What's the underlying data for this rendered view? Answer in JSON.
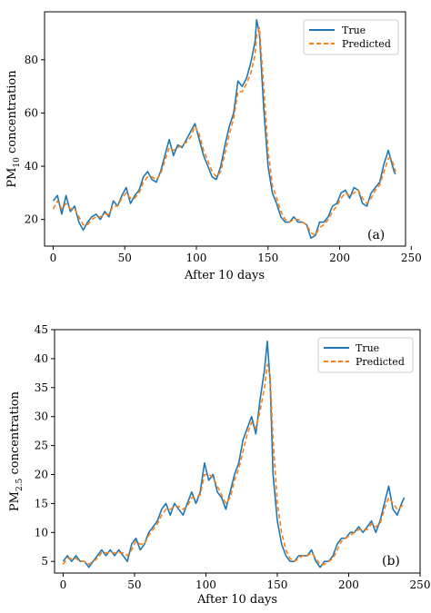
{
  "chart_data": [
    {
      "type": "line",
      "panel_label": "(a)",
      "xlabel": "After 10 days",
      "ylabel_main": "PM",
      "ylabel_sub": "10",
      "ylabel_rest": " concentration",
      "xlim": [
        -6,
        246
      ],
      "ylim": [
        10,
        98
      ],
      "xticks": [
        0,
        50,
        100,
        150,
        200,
        250
      ],
      "yticks": [
        20,
        40,
        60,
        80
      ],
      "legend": {
        "position": "top-right"
      },
      "series": [
        {
          "name": "True",
          "color": "#1f77b4",
          "style": "solid",
          "x": [
            0,
            3,
            6,
            9,
            12,
            15,
            18,
            21,
            24,
            27,
            30,
            33,
            36,
            39,
            42,
            45,
            48,
            51,
            54,
            57,
            60,
            63,
            66,
            69,
            72,
            75,
            78,
            81,
            84,
            87,
            90,
            93,
            96,
            99,
            102,
            105,
            108,
            111,
            114,
            117,
            120,
            123,
            126,
            129,
            132,
            135,
            138,
            141,
            142,
            144,
            147,
            150,
            153,
            156,
            159,
            162,
            165,
            168,
            171,
            174,
            177,
            180,
            183,
            186,
            189,
            192,
            195,
            198,
            201,
            204,
            207,
            210,
            213,
            216,
            219,
            222,
            225,
            228,
            231,
            234,
            236,
            238,
            239
          ],
          "y": [
            27,
            29,
            22,
            29,
            23,
            25,
            19,
            16,
            19,
            21,
            22,
            20,
            23,
            21,
            27,
            25,
            29,
            32,
            26,
            29,
            31,
            36,
            38,
            35,
            34,
            38,
            44,
            50,
            44,
            48,
            47,
            50,
            53,
            56,
            50,
            44,
            40,
            36,
            35,
            40,
            48,
            55,
            60,
            72,
            70,
            73,
            79,
            87,
            95,
            90,
            62,
            40,
            30,
            26,
            21,
            19,
            19,
            21,
            19,
            19,
            18,
            13,
            14,
            19,
            19,
            21,
            25,
            26,
            30,
            31,
            28,
            32,
            31,
            26,
            25,
            30,
            32,
            34,
            41,
            46,
            42,
            38,
            37
          ]
        },
        {
          "name": "Predicted",
          "color": "#ff7f0e",
          "style": "dashed",
          "x": [
            0,
            3,
            6,
            9,
            12,
            15,
            18,
            21,
            24,
            27,
            30,
            33,
            36,
            39,
            42,
            45,
            48,
            51,
            54,
            57,
            60,
            63,
            66,
            69,
            72,
            75,
            78,
            81,
            84,
            87,
            90,
            93,
            96,
            99,
            102,
            105,
            108,
            111,
            114,
            117,
            120,
            123,
            126,
            129,
            132,
            135,
            138,
            141,
            142,
            144,
            147,
            150,
            153,
            156,
            159,
            162,
            165,
            168,
            171,
            174,
            177,
            180,
            183,
            186,
            189,
            192,
            195,
            198,
            201,
            204,
            207,
            210,
            213,
            216,
            219,
            222,
            225,
            228,
            231,
            234,
            236,
            238,
            239
          ],
          "y": [
            24,
            27,
            24,
            26,
            24,
            24,
            21,
            18,
            18,
            20,
            21,
            21,
            22,
            22,
            25,
            25,
            28,
            30,
            28,
            28,
            30,
            34,
            36,
            36,
            35,
            37,
            42,
            47,
            46,
            47,
            48,
            49,
            51,
            55,
            52,
            46,
            42,
            38,
            36,
            38,
            45,
            52,
            58,
            68,
            68,
            71,
            75,
            82,
            89,
            92,
            70,
            46,
            33,
            28,
            23,
            20,
            19,
            20,
            20,
            19,
            18,
            15,
            14,
            17,
            18,
            20,
            23,
            25,
            28,
            30,
            29,
            30,
            31,
            28,
            26,
            28,
            31,
            33,
            38,
            43,
            43,
            40,
            38
          ]
        }
      ]
    },
    {
      "type": "line",
      "panel_label": "(b)",
      "xlabel": "After 10 days",
      "ylabel_main": "PM",
      "ylabel_sub": "2.5",
      "ylabel_rest": " concentration",
      "xlim": [
        -6,
        250
      ],
      "ylim": [
        3,
        45
      ],
      "xticks": [
        0,
        50,
        100,
        150,
        200,
        250
      ],
      "yticks": [
        5,
        10,
        15,
        20,
        25,
        30,
        35,
        40,
        45
      ],
      "legend": {
        "position": "top-right"
      },
      "series": [
        {
          "name": "True",
          "color": "#1f77b4",
          "style": "solid",
          "x": [
            0,
            3,
            6,
            9,
            12,
            15,
            18,
            21,
            24,
            27,
            30,
            33,
            36,
            39,
            42,
            45,
            48,
            51,
            54,
            57,
            60,
            63,
            66,
            69,
            72,
            75,
            78,
            81,
            84,
            87,
            90,
            93,
            96,
            99,
            102,
            105,
            108,
            111,
            114,
            117,
            120,
            123,
            126,
            129,
            132,
            135,
            138,
            141,
            143,
            145,
            147,
            150,
            153,
            156,
            159,
            162,
            165,
            168,
            171,
            174,
            177,
            180,
            183,
            186,
            189,
            192,
            195,
            198,
            201,
            204,
            207,
            210,
            213,
            216,
            219,
            222,
            225,
            228,
            231,
            234,
            237,
            239
          ],
          "y": [
            5,
            6,
            5,
            6,
            5,
            5,
            4,
            5,
            6,
            7,
            6,
            7,
            6,
            7,
            6,
            5,
            8,
            9,
            7,
            8,
            10,
            11,
            12,
            14,
            15,
            13,
            15,
            14,
            13,
            15,
            17,
            15,
            17,
            22,
            19,
            20,
            17,
            16,
            14,
            17,
            20,
            22,
            26,
            28,
            30,
            27,
            33,
            38,
            43,
            36,
            20,
            12,
            8,
            6,
            5,
            5,
            6,
            6,
            6,
            7,
            5,
            4,
            5,
            5,
            6,
            8,
            9,
            9,
            10,
            10,
            11,
            10,
            11,
            12,
            10,
            12,
            15,
            18,
            14,
            13,
            15,
            16
          ]
        },
        {
          "name": "Predicted",
          "color": "#ff7f0e",
          "style": "dashed",
          "x": [
            0,
            3,
            6,
            9,
            12,
            15,
            18,
            21,
            24,
            27,
            30,
            33,
            36,
            39,
            42,
            45,
            48,
            51,
            54,
            57,
            60,
            63,
            66,
            69,
            72,
            75,
            78,
            81,
            84,
            87,
            90,
            93,
            96,
            99,
            102,
            105,
            108,
            111,
            114,
            117,
            120,
            123,
            126,
            129,
            132,
            135,
            138,
            141,
            143,
            145,
            147,
            150,
            153,
            156,
            159,
            162,
            165,
            168,
            171,
            174,
            177,
            180,
            183,
            186,
            189,
            192,
            195,
            198,
            201,
            204,
            207,
            210,
            213,
            216,
            219,
            222,
            225,
            228,
            231,
            234,
            237,
            239
          ],
          "y": [
            4.5,
            5.5,
            5.5,
            5.5,
            5,
            5,
            4.5,
            5,
            5.5,
            6.5,
            6.5,
            6.5,
            6.5,
            6.5,
            6.5,
            6,
            7,
            8.5,
            8,
            8,
            9.5,
            10.5,
            11.5,
            13,
            14,
            14,
            14.5,
            14.5,
            14,
            14.5,
            16,
            16,
            16.5,
            20,
            20,
            19.5,
            18,
            16.5,
            15,
            16,
            19,
            21,
            24,
            27,
            29,
            28,
            31,
            35,
            39,
            37,
            26,
            15,
            10,
            7,
            5.5,
            5,
            5.5,
            6,
            6,
            6.5,
            5.5,
            4.5,
            4.5,
            5,
            5.5,
            7,
            8.5,
            9,
            9.5,
            10,
            10.5,
            10.5,
            10.5,
            11.5,
            11,
            11.5,
            14,
            16,
            15,
            14,
            14.5,
            15
          ]
        }
      ]
    }
  ]
}
